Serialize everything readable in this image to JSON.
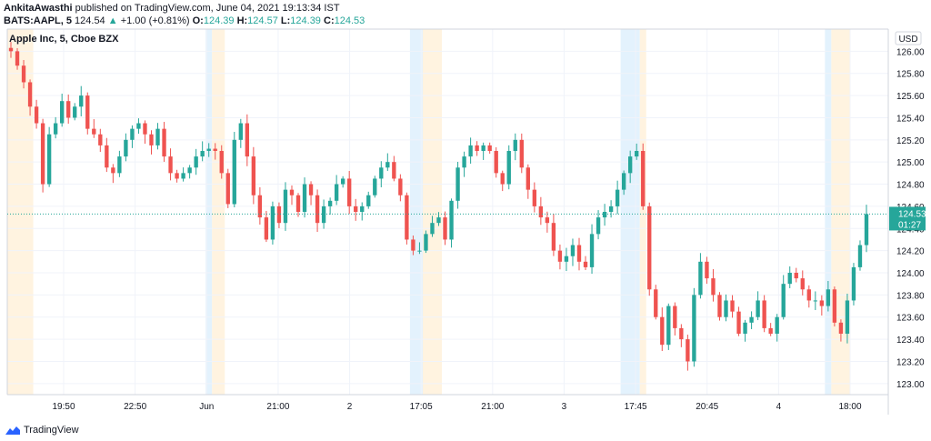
{
  "header": {
    "author": "AnkitaAwasthi",
    "published_text": "published on TradingView.com, June 04, 2021 19:13:34 IST",
    "symbol": "BATS:AAPL, 5",
    "last_price": "124.54",
    "up_arrow": "▲",
    "change": "+1.00 (+0.81%)",
    "open_label": "O:",
    "open": "124.39",
    "high_label": "H:",
    "high": "124.57",
    "low_label": "L:",
    "low": "124.39",
    "close_label": "C:",
    "close": "124.53"
  },
  "footer": {
    "brand": "TradingView",
    "logo_icon": "tradingview-logo-icon"
  },
  "colors": {
    "up": "#26a69a",
    "down": "#ef5350",
    "premarket": "#e3f2fd",
    "afterhours": "#fff3e0",
    "grid": "#f0f3fa"
  },
  "chart_data": {
    "type": "candlestick",
    "title": "Apple Inc, 5, Cboe BZX",
    "currency_label": "USD",
    "ylim": [
      122.9,
      126.2
    ],
    "y_ticks": [
      126.0,
      125.8,
      125.6,
      125.4,
      125.2,
      125.0,
      124.8,
      124.6,
      124.4,
      124.2,
      124.0,
      123.8,
      123.6,
      123.4,
      123.2,
      123.0
    ],
    "x_ticks": [
      "19:50",
      "22:50",
      "Jun",
      "21:00",
      "2",
      "17:05",
      "21:00",
      "3",
      "17:45",
      "20:45",
      "4",
      "18:00"
    ],
    "last_price_label": "124.53",
    "countdown_label": "01:27",
    "last_price": 124.53,
    "sessions": [
      {
        "type": "afterhours",
        "start": 0,
        "end": 4
      },
      {
        "type": "premarket",
        "start": 31,
        "end": 32
      },
      {
        "type": "afterhours",
        "start": 32,
        "end": 34
      },
      {
        "type": "premarket",
        "start": 63,
        "end": 65
      },
      {
        "type": "afterhours",
        "start": 65,
        "end": 68
      },
      {
        "type": "premarket",
        "start": 96,
        "end": 99
      },
      {
        "type": "afterhours",
        "start": 99,
        "end": 100
      },
      {
        "type": "premarket",
        "start": 128,
        "end": 129
      },
      {
        "type": "afterhours",
        "start": 129,
        "end": 132
      }
    ],
    "closes": [
      126.0,
      125.87,
      125.72,
      125.5,
      125.35,
      124.8,
      125.25,
      125.35,
      125.55,
      125.4,
      125.5,
      125.6,
      125.3,
      125.25,
      125.15,
      124.95,
      124.9,
      125.05,
      125.2,
      125.3,
      125.35,
      125.25,
      125.15,
      125.3,
      125.05,
      124.9,
      124.85,
      124.9,
      124.95,
      125.05,
      125.1,
      125.12,
      125.1,
      124.9,
      124.62,
      125.2,
      125.35,
      125.05,
      124.7,
      124.5,
      124.3,
      124.6,
      124.45,
      124.75,
      124.7,
      124.55,
      124.8,
      124.7,
      124.45,
      124.6,
      124.65,
      124.8,
      124.85,
      124.6,
      124.55,
      124.6,
      124.7,
      124.85,
      124.95,
      125.0,
      124.85,
      124.7,
      124.3,
      124.2,
      124.2,
      124.35,
      124.45,
      124.5,
      124.3,
      124.65,
      124.95,
      125.05,
      125.15,
      125.1,
      125.15,
      125.1,
      124.9,
      124.8,
      125.1,
      125.2,
      124.95,
      124.75,
      124.6,
      124.5,
      124.45,
      124.2,
      124.1,
      124.15,
      124.25,
      124.1,
      124.05,
      124.35,
      124.5,
      124.55,
      124.6,
      124.75,
      124.9,
      125.05,
      125.1,
      124.6,
      123.85,
      123.6,
      123.35,
      123.7,
      123.5,
      123.4,
      123.2,
      123.8,
      124.1,
      123.95,
      123.8,
      123.6,
      123.75,
      123.65,
      123.45,
      123.55,
      123.6,
      123.75,
      123.5,
      123.45,
      123.6,
      123.9,
      124.0,
      123.95,
      123.85,
      123.75,
      123.75,
      123.7,
      123.85,
      123.55,
      123.45,
      123.75,
      124.05,
      124.25,
      124.53
    ]
  }
}
